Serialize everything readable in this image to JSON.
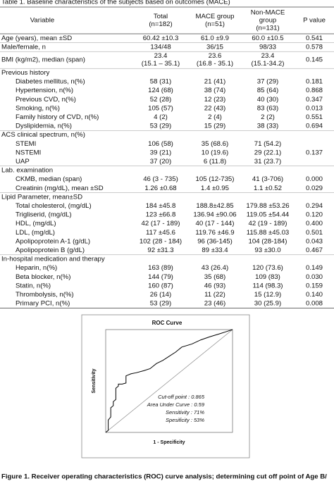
{
  "table": {
    "title": "Table 1. Baseline characteristics of  the subjects based on outcomes (MACE)",
    "header": [
      [
        "Variable"
      ],
      [
        "Total",
        "(n=182)"
      ],
      [
        "MACE group",
        "(n=51)"
      ],
      [
        "Non-MACE",
        "group",
        "(n=131)"
      ],
      [
        "P value"
      ]
    ],
    "rows": [
      [
        [
          "Age (years), mean ±SD"
        ],
        [
          "60.42 ±10.3"
        ],
        [
          "61.0 ±9.9"
        ],
        [
          "60.0 ±10.5"
        ],
        [
          "0.541"
        ]
      ],
      [
        [
          "Male/female, n"
        ],
        [
          "134/48"
        ],
        [
          "36/15"
        ],
        [
          "98/33"
        ],
        [
          "0.578"
        ]
      ],
      [
        [
          "BMI (kg/m2), median (span)"
        ],
        [
          "23.4",
          "(15.1 – 35.1)"
        ],
        [
          "23.6",
          "(16.8 - 35.1)"
        ],
        [
          "23.4",
          "(15.1-34.2)"
        ],
        [
          "0.145"
        ]
      ]
    ],
    "sections": [
      {
        "title": "Previous history",
        "rows": [
          [
            [
              "Diabetes mellitus, n(%)"
            ],
            [
              "58 (31)"
            ],
            [
              "21 (41)"
            ],
            [
              "37 (29)"
            ],
            [
              "0.181"
            ]
          ],
          [
            [
              "Hypertension, n(%)"
            ],
            [
              "124 (68)"
            ],
            [
              "38 (74)"
            ],
            [
              "85 (64)"
            ],
            [
              "0.868"
            ]
          ],
          [
            [
              "Previous CVD, n(%)"
            ],
            [
              "52 (28)"
            ],
            [
              "12 (23)"
            ],
            [
              "40 (30)"
            ],
            [
              "0.347"
            ]
          ],
          [
            [
              "Smoking, n(%)"
            ],
            [
              "105 (57)"
            ],
            [
              "22 (43)"
            ],
            [
              "83 (63)"
            ],
            [
              "0.013"
            ]
          ],
          [
            [
              "Family history of CVD, n(%)"
            ],
            [
              "4 (2)"
            ],
            [
              "2 (4)"
            ],
            [
              "2 (2)"
            ],
            [
              "0.551"
            ]
          ],
          [
            [
              "Dyslipidemia, n(%)"
            ],
            [
              "53 (29)"
            ],
            [
              "15 (29)"
            ],
            [
              "38 (33)"
            ],
            [
              "0.694"
            ]
          ]
        ]
      },
      {
        "title": "ACS clinical spectrum, n(%)",
        "rows": [
          [
            [
              "STEMI"
            ],
            [
              "106 (58)"
            ],
            [
              "35 (68.6)"
            ],
            [
              "71 (54.2)"
            ]
          ],
          [
            [
              "NSTEMI"
            ],
            [
              "39 (21)"
            ],
            [
              "10 (19.6)"
            ],
            [
              "29 (22.1)"
            ],
            [
              "0.137"
            ]
          ],
          [
            [
              "UAP"
            ],
            [
              "37 (20)"
            ],
            [
              "6 (11.8)"
            ],
            [
              "31 (23.7)"
            ]
          ]
        ]
      },
      {
        "title": "Lab. examination",
        "rows": [
          [
            [
              "CKMB, median (span)"
            ],
            [
              "46 (3 - 735)"
            ],
            [
              "105 (12-735)"
            ],
            [
              "41 (3-706)"
            ],
            [
              "0.000"
            ]
          ],
          [
            [
              "Creatinin (mg/dL), mean ±SD"
            ],
            [
              "1.26 ±0.68"
            ],
            [
              "1.4 ±0.95"
            ],
            [
              "1.1 ±0.52"
            ],
            [
              "0.029"
            ]
          ]
        ]
      },
      {
        "title": "Lipid Parameter, mean±SD",
        "rows": [
          [
            [
              "Total cholesterol, (mg/dL)"
            ],
            [
              "184 ±45.8"
            ],
            [
              "188.8±42.85"
            ],
            [
              "179.88 ±53.26"
            ],
            [
              "0.294"
            ]
          ],
          [
            [
              "Trigliserid, (mg/dL)"
            ],
            [
              "123 ±66.8"
            ],
            [
              "136.94 ±90.06"
            ],
            [
              "119.05 ±54.44"
            ],
            [
              "0.120"
            ]
          ],
          [
            [
              "HDL, (mg/dL)"
            ],
            [
              "42 (17 - 189)"
            ],
            [
              "40 (17 - 144)"
            ],
            [
              "42 (19 - 189)"
            ],
            [
              "0.400"
            ]
          ],
          [
            [
              "LDL, (mg/dL)"
            ],
            [
              "117 ±45.6"
            ],
            [
              "119.76 ±46.9"
            ],
            [
              "115.88 ±45.03"
            ],
            [
              "0.501"
            ]
          ],
          [
            [
              "Apolipoprotein A-1 (g/dL)"
            ],
            [
              "102 (28 - 184)"
            ],
            [
              "96 (36-145)"
            ],
            [
              "104 (28-184)"
            ],
            [
              "0.043"
            ]
          ],
          [
            [
              "Apolipoprotein B (g/dL)"
            ],
            [
              "92 ±31.3"
            ],
            [
              "89 ±33.4"
            ],
            [
              "93 ±30.0"
            ],
            [
              "0.467"
            ]
          ]
        ]
      },
      {
        "title": "In-hospital medication and therapy",
        "rows": [
          [
            [
              "Heparin, n(%)"
            ],
            [
              "163 (89)"
            ],
            [
              "43 (26.4)"
            ],
            [
              "120 (73.6)"
            ],
            [
              "0.149"
            ]
          ],
          [
            [
              "Beta blocker, n(%)"
            ],
            [
              "144 (79)"
            ],
            [
              "35 (68)"
            ],
            [
              "109 (83)"
            ],
            [
              "0.030"
            ]
          ],
          [
            [
              "Statin, n(%)"
            ],
            [
              "160 (87)"
            ],
            [
              "46 (93)"
            ],
            [
              "114 (98.3)"
            ],
            [
              "0.159"
            ]
          ],
          [
            [
              "Thrombolysis, n(%)"
            ],
            [
              "26 (14)"
            ],
            [
              "11 (22)"
            ],
            [
              "15 (12.9)"
            ],
            [
              "0.140"
            ]
          ],
          [
            [
              "Primary PCI, n(%)"
            ],
            [
              "53 (29)"
            ],
            [
              "23 (46)"
            ],
            [
              "30 (25.9)"
            ],
            [
              "0.008"
            ]
          ]
        ]
      }
    ]
  },
  "chart_data": {
    "type": "line",
    "title": "ROC Curve",
    "x_label": "1 - Specificity",
    "y_label": "Sensitivity",
    "xlim": [
      0,
      1
    ],
    "ylim": [
      0,
      1
    ],
    "color": "#000000",
    "x": [
      0,
      0.02,
      0.02,
      0.04,
      0.04,
      0.06,
      0.06,
      0.08,
      0.08,
      0.1,
      0.1,
      0.13,
      0.16,
      0.16,
      0.2,
      0.24,
      0.3,
      0.35,
      0.4,
      0.45,
      0.5,
      0.55,
      0.6,
      0.68,
      0.75,
      0.82,
      0.9,
      0.95,
      1
    ],
    "y": [
      0,
      0.02,
      0.12,
      0.15,
      0.24,
      0.26,
      0.3,
      0.32,
      0.43,
      0.45,
      0.47,
      0.47,
      0.48,
      0.55,
      0.57,
      0.58,
      0.6,
      0.62,
      0.67,
      0.7,
      0.74,
      0.78,
      0.83,
      0.86,
      0.9,
      0.93,
      0.96,
      0.98,
      1
    ],
    "annotations": [
      "Cut-off point : 0.865",
      "Area Under Curve : 0.59",
      "Sensitivity : 71%",
      "Spesificity : 53%"
    ]
  },
  "caption": "Figure 1. Receiver operating characteristics (ROC) curve analysis; determining cut off point of Age B/"
}
